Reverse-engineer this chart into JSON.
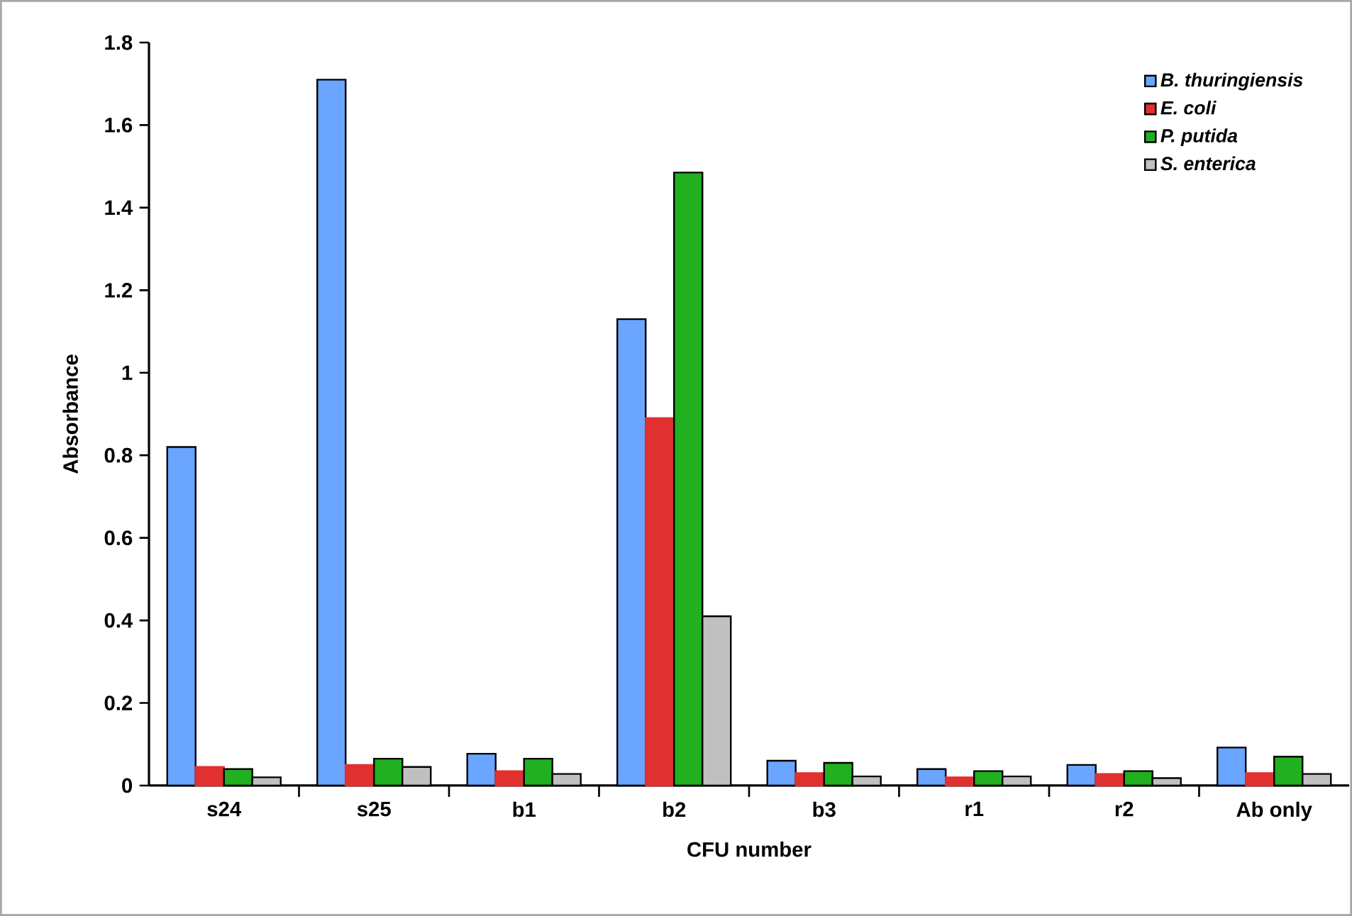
{
  "chart_data": {
    "type": "bar",
    "xlabel": "CFU number",
    "ylabel": "Absorbance",
    "categories": [
      "s24",
      "s25",
      "b1",
      "b2",
      "b3",
      "r1",
      "r2",
      "Ab only"
    ],
    "series": [
      {
        "name": "B. thuringiensis",
        "color": "#6aa5ff",
        "values": [
          0.82,
          1.71,
          0.077,
          1.13,
          0.06,
          0.04,
          0.05,
          0.092
        ]
      },
      {
        "name": "E. coli",
        "color": "#e03030",
        "values": [
          0.045,
          0.05,
          0.035,
          0.89,
          0.03,
          0.02,
          0.028,
          0.03
        ]
      },
      {
        "name": "P. putida",
        "color": "#20b020",
        "values": [
          0.04,
          0.065,
          0.065,
          1.485,
          0.055,
          0.035,
          0.035,
          0.07
        ]
      },
      {
        "name": "S. enterica",
        "color": "#c0c0c0",
        "values": [
          0.02,
          0.045,
          0.028,
          0.41,
          0.022,
          0.022,
          0.018,
          0.028
        ]
      }
    ],
    "ylim": [
      0,
      1.8
    ],
    "yticks": [
      0,
      0.2,
      0.4,
      0.6,
      0.8,
      1,
      1.2,
      1.4,
      1.6,
      1.8
    ],
    "legend": "top right",
    "grid": false
  }
}
